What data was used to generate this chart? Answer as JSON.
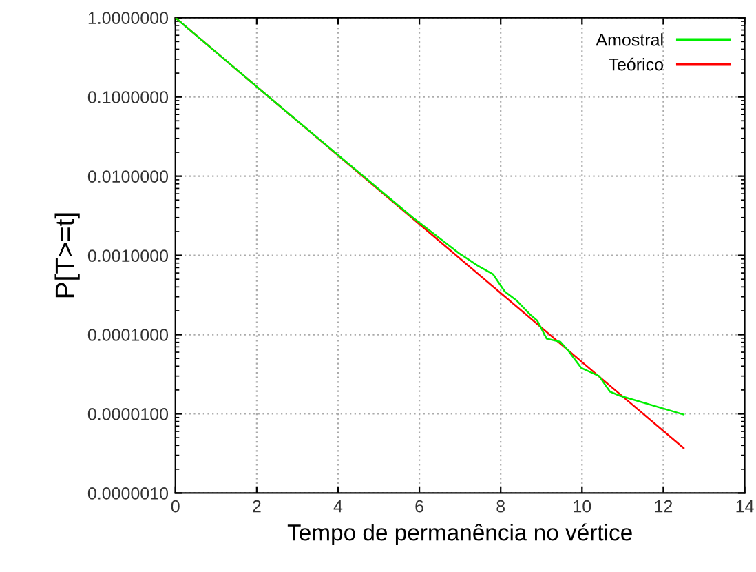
{
  "chart_data": {
    "type": "line",
    "xlabel": "Tempo de permanência no vértice",
    "ylabel": "P[T>=t]",
    "log": "y",
    "grid": true,
    "legend": "top right",
    "line_style": "solid",
    "marker": "none",
    "xlim": [
      0,
      14
    ],
    "xticks": [
      0,
      2,
      4,
      6,
      8,
      10,
      12,
      14
    ],
    "ylim": [
      1e-06,
      1
    ],
    "yticks": [
      {
        "value": 1e-06,
        "label": "0.0000010"
      },
      {
        "value": 1e-05,
        "label": "0.0000100"
      },
      {
        "value": 0.0001,
        "label": "0.0001000"
      },
      {
        "value": 0.001,
        "label": "0.0010000"
      },
      {
        "value": 0.01,
        "label": "0.0100000"
      },
      {
        "value": 0.1,
        "label": "0.1000000"
      },
      {
        "value": 1,
        "label": "1.0000000"
      }
    ],
    "series": [
      {
        "name": "Amostral",
        "color": "#00ee00",
        "x": [
          0,
          2,
          4,
          5,
          5.5,
          5.84,
          6.97,
          7.44,
          7.81,
          8.1,
          8.39,
          8.72,
          8.9,
          9.13,
          9.47,
          9.67,
          9.98,
          10.42,
          10.69,
          10.92,
          12.5
        ],
        "values": [
          1,
          0.135,
          0.0185,
          0.0069,
          0.0042,
          0.003,
          0.00107,
          0.00074,
          0.00058,
          0.00035,
          0.00027,
          0.00018,
          0.00015,
          8.9e-05,
          8.1e-05,
          6.2e-05,
          3.8e-05,
          3e-05,
          1.9e-05,
          1.7e-05,
          9.8e-06
        ]
      },
      {
        "name": "Teórico",
        "color": "#ff0000",
        "x": [
          0,
          2,
          4,
          6,
          8,
          10,
          12.5
        ],
        "values": [
          1,
          0.135,
          0.0183,
          0.00248,
          0.000335,
          4.5e-05,
          3.7e-06
        ]
      }
    ]
  }
}
